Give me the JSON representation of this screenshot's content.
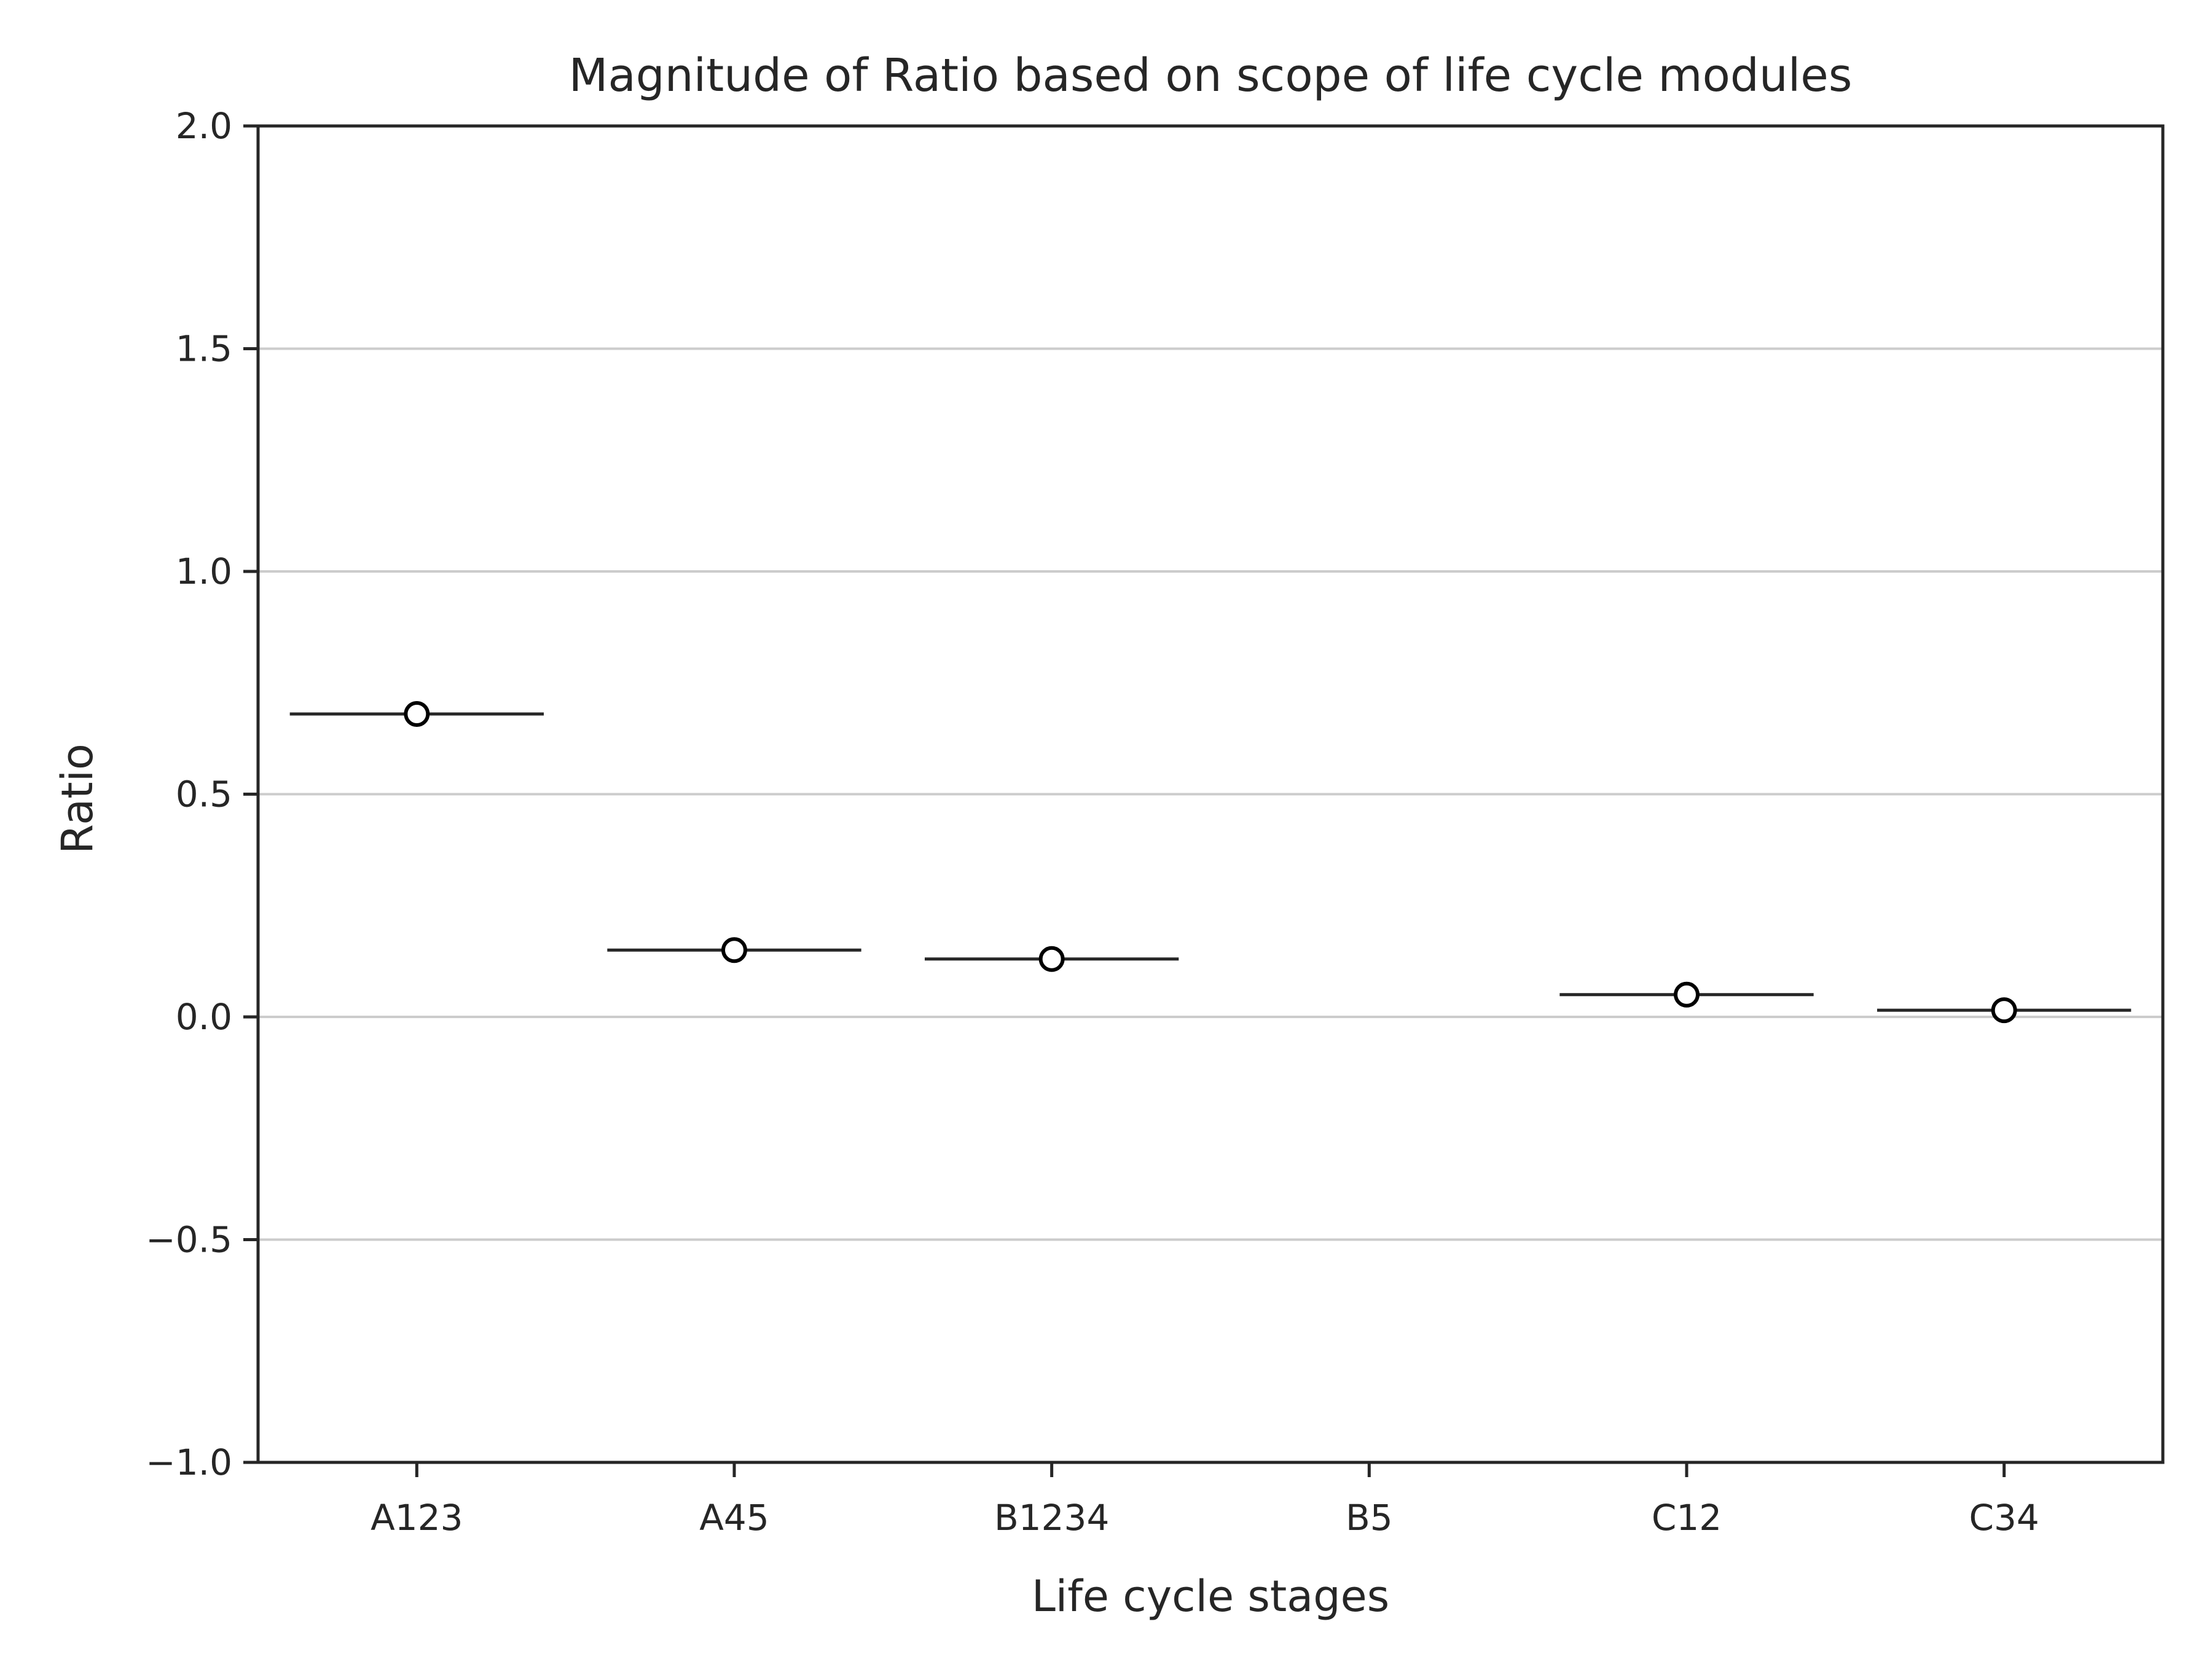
{
  "chart_data": {
    "type": "scatter",
    "title": "Magnitude of Ratio based on scope of life cycle modules",
    "xlabel": "Life cycle stages",
    "ylabel": "Ratio",
    "categories": [
      "A123",
      "A45",
      "B1234",
      "B5",
      "C12",
      "C34"
    ],
    "values": [
      0.68,
      0.15,
      0.13,
      null,
      0.05,
      0.015
    ],
    "ylim": [
      -1.0,
      2.0
    ],
    "yticks": [
      -1.0,
      -0.5,
      0.0,
      0.5,
      1.0,
      1.5,
      2.0
    ],
    "ytick_labels": [
      "−1.0",
      "−0.5",
      "0.0",
      "0.5",
      "1.0",
      "1.5",
      "2.0"
    ],
    "grid": "horizontal",
    "legend": "none",
    "colors": {
      "axis": "#262626",
      "grid": "#cccccc",
      "marker_fill": "#ffffff",
      "marker_edge": "#000000",
      "line": "#262626"
    }
  }
}
